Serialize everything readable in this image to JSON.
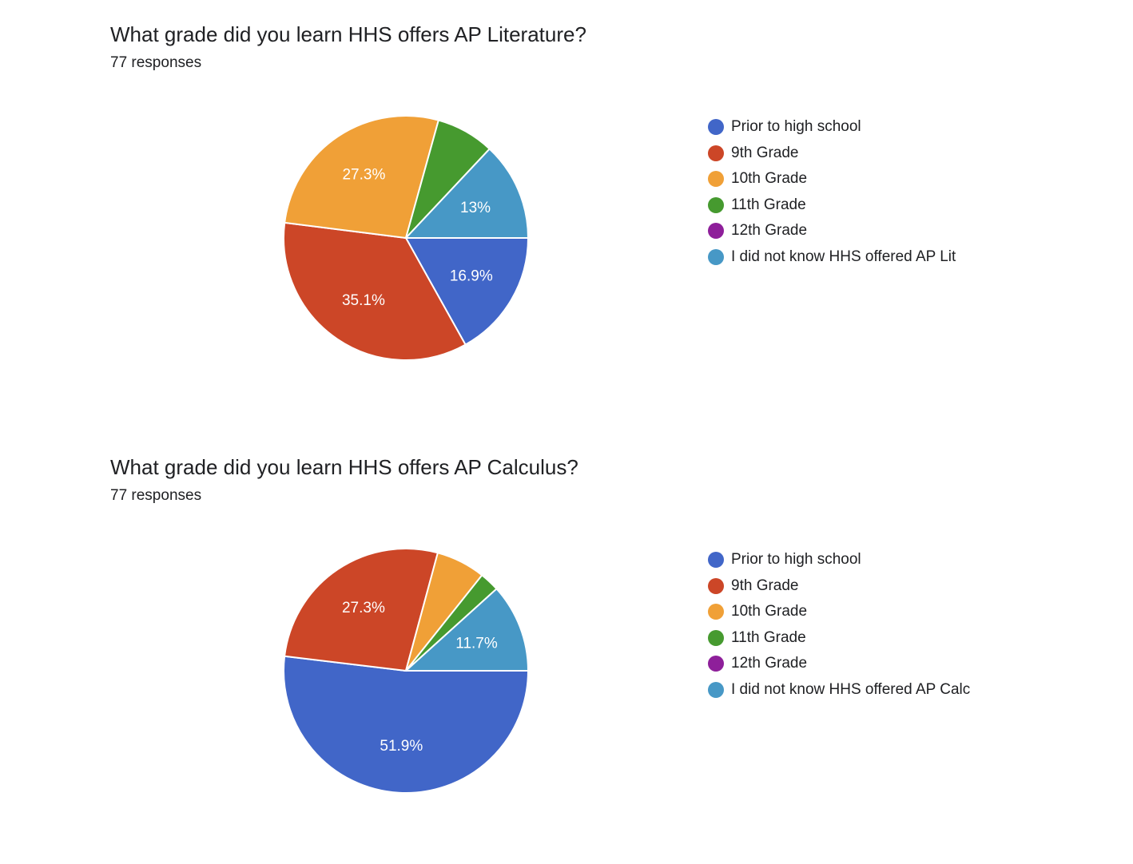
{
  "chart_data": [
    {
      "type": "pie",
      "title": "What grade did you learn HHS offers AP Literature?",
      "subtitle": "77 responses",
      "categories": [
        "Prior to high school",
        "9th Grade",
        "10th Grade",
        "11th Grade",
        "12th Grade",
        "I did not know HHS offered AP Lit"
      ],
      "values": [
        16.9,
        35.1,
        27.3,
        7.7,
        0,
        13.0
      ],
      "labels": [
        "16.9%",
        "35.1%",
        "27.3%",
        "",
        "",
        "13%"
      ],
      "colors": [
        "#4166c8",
        "#cc4627",
        "#f0a037",
        "#469a2f",
        "#8e1f9a",
        "#4798c6"
      ],
      "legend_position": "right"
    },
    {
      "type": "pie",
      "title": "What grade did you learn HHS offers AP Calculus?",
      "subtitle": "77 responses",
      "categories": [
        "Prior to high school",
        "9th Grade",
        "10th Grade",
        "11th Grade",
        "12th Grade",
        "I did not know HHS offered AP Calc"
      ],
      "values": [
        51.9,
        27.3,
        6.5,
        2.6,
        0,
        11.7
      ],
      "labels": [
        "51.9%",
        "27.3%",
        "",
        "",
        "",
        "11.7%"
      ],
      "colors": [
        "#4166c8",
        "#cc4627",
        "#f0a037",
        "#469a2f",
        "#8e1f9a",
        "#4798c6"
      ],
      "legend_position": "right"
    }
  ]
}
